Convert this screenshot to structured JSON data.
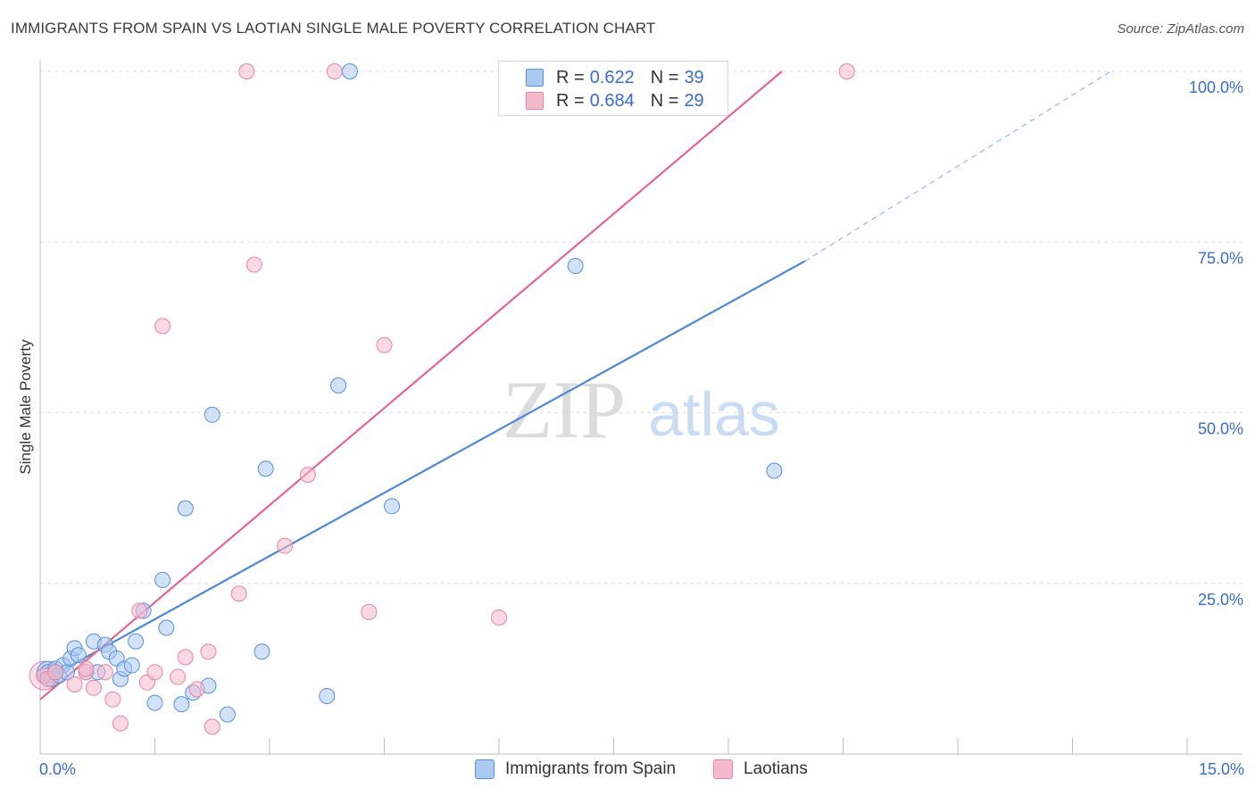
{
  "header": {
    "title": "IMMIGRANTS FROM SPAIN VS LAOTIAN SINGLE MALE POVERTY CORRELATION CHART",
    "source": "Source: ZipAtlas.com"
  },
  "watermark": {
    "zip": "ZIP",
    "atlas": "atlas"
  },
  "legend": {
    "series": [
      {
        "r_label": "R =",
        "r_value": "0.622",
        "n_label": "N =",
        "n_value": "39",
        "color": "#a9c8f2"
      },
      {
        "r_label": "R =",
        "r_value": "0.684",
        "n_label": "N =",
        "n_value": "29",
        "color": "#f6b9cb"
      }
    ]
  },
  "bottom_legend": {
    "items": [
      {
        "label": "Immigrants from Spain",
        "color": "#a9c8f2"
      },
      {
        "label": "Laotians",
        "color": "#f6b9cb"
      }
    ]
  },
  "chart_data": {
    "type": "scatter",
    "title": "IMMIGRANTS FROM SPAIN VS LAOTIAN SINGLE MALE POVERTY CORRELATION CHART",
    "xlabel": "",
    "ylabel": "Single Male Poverty",
    "xlim": [
      0,
      15
    ],
    "ylim": [
      0,
      100
    ],
    "x_tick_labels": [
      "0.0%",
      "15.0%"
    ],
    "y_ticks": [
      25,
      50,
      75,
      100
    ],
    "y_tick_labels": [
      "25.0%",
      "50.0%",
      "75.0%",
      "100.0%"
    ],
    "grid": true,
    "series": [
      {
        "name": "Immigrants from Spain",
        "color": "#4f86d4",
        "fill": "#a9c8f2",
        "points": [
          [
            0.05,
            11.5
          ],
          [
            0.1,
            12
          ],
          [
            0.15,
            11
          ],
          [
            0.2,
            12.5
          ],
          [
            0.25,
            11.5
          ],
          [
            0.3,
            13
          ],
          [
            0.35,
            12
          ],
          [
            0.4,
            14
          ],
          [
            0.45,
            15.5
          ],
          [
            0.5,
            14.5
          ],
          [
            0.6,
            12
          ],
          [
            0.7,
            16.5
          ],
          [
            0.75,
            12
          ],
          [
            0.85,
            16
          ],
          [
            0.9,
            15
          ],
          [
            1.0,
            14
          ],
          [
            1.05,
            11
          ],
          [
            1.1,
            12.5
          ],
          [
            1.2,
            13
          ],
          [
            1.25,
            16.5
          ],
          [
            1.35,
            21
          ],
          [
            1.5,
            7.5
          ],
          [
            1.6,
            25.5
          ],
          [
            1.65,
            18.5
          ],
          [
            1.85,
            7.3
          ],
          [
            1.9,
            36
          ],
          [
            2.0,
            9
          ],
          [
            2.2,
            10
          ],
          [
            2.25,
            49.7
          ],
          [
            2.45,
            5.8
          ],
          [
            2.9,
            15
          ],
          [
            2.95,
            41.8
          ],
          [
            3.75,
            8.5
          ],
          [
            3.9,
            54
          ],
          [
            4.05,
            100
          ],
          [
            4.6,
            36.3
          ],
          [
            7.0,
            71.5
          ],
          [
            9.6,
            41.5
          ],
          [
            0.2,
            12
          ]
        ],
        "trend": {
          "x0": 0,
          "y0": 10.5,
          "x1": 10.0,
          "y1": 72.2,
          "dash_x1": 14.0,
          "dash_y1": 100
        }
      },
      {
        "name": "Laotians",
        "color": "#e0678f",
        "fill": "#f6b9cb",
        "points": [
          [
            0.05,
            11.5
          ],
          [
            0.1,
            11
          ],
          [
            0.2,
            12
          ],
          [
            0.45,
            10.2
          ],
          [
            0.6,
            12
          ],
          [
            0.7,
            9.7
          ],
          [
            0.85,
            12
          ],
          [
            0.95,
            8
          ],
          [
            1.05,
            4.5
          ],
          [
            1.3,
            21
          ],
          [
            1.4,
            10.5
          ],
          [
            1.5,
            12
          ],
          [
            1.6,
            62.7
          ],
          [
            1.8,
            11.3
          ],
          [
            1.9,
            14.2
          ],
          [
            2.05,
            9.5
          ],
          [
            2.2,
            15
          ],
          [
            2.25,
            4
          ],
          [
            2.6,
            23.5
          ],
          [
            2.7,
            100
          ],
          [
            2.8,
            71.7
          ],
          [
            3.2,
            30.5
          ],
          [
            3.5,
            40.9
          ],
          [
            3.85,
            100
          ],
          [
            4.3,
            20.8
          ],
          [
            4.5,
            59.9
          ],
          [
            6.0,
            20
          ],
          [
            10.55,
            100
          ],
          [
            0.6,
            12.5
          ]
        ],
        "trend": {
          "x0": 0,
          "y0": 8.0,
          "x1": 9.7,
          "y1": 100
        }
      }
    ]
  }
}
